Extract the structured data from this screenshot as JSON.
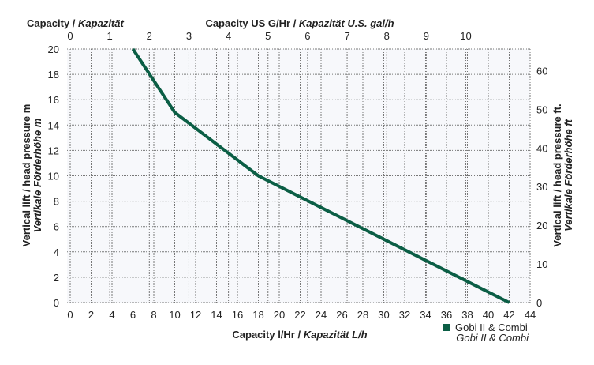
{
  "chart_data": {
    "type": "line",
    "title_left": "Capacity",
    "title_left_it": "Kapazität",
    "top_label": "Capacity US G/Hr",
    "top_label_it": "Kapazität U.S. gal/h",
    "xlabel": "Capacity l/Hr",
    "xlabel_it": "Kapazität L/h",
    "ylabel": "Vertical lift / head pressure m",
    "ylabel_it": "Vertikale Förderhöhe m",
    "y2label": "Vertical lift / head pressure ft.",
    "y2label_it": "Vertikale Förderhöhe ft",
    "xlim": [
      0,
      44
    ],
    "ylim": [
      0,
      20
    ],
    "x_ticks": [
      0,
      2,
      4,
      6,
      8,
      10,
      12,
      14,
      16,
      18,
      20,
      22,
      24,
      26,
      28,
      30,
      32,
      34,
      36,
      38,
      40,
      42,
      44
    ],
    "y_ticks": [
      0,
      2,
      4,
      6,
      8,
      10,
      12,
      14,
      16,
      18,
      20
    ],
    "top_ticks": [
      0,
      1,
      2,
      3,
      4,
      5,
      6,
      7,
      8,
      9,
      10
    ],
    "y2_ticks": [
      0,
      10,
      20,
      30,
      40,
      50,
      60
    ],
    "series": [
      {
        "name": "Gobi II & Combi",
        "name_it": "Gobi II & Combi",
        "color": "#0b5e45",
        "x": [
          6,
          10,
          18,
          42
        ],
        "y": [
          20,
          15,
          10,
          0
        ]
      }
    ],
    "legend": "bottom-right",
    "grid": true
  }
}
